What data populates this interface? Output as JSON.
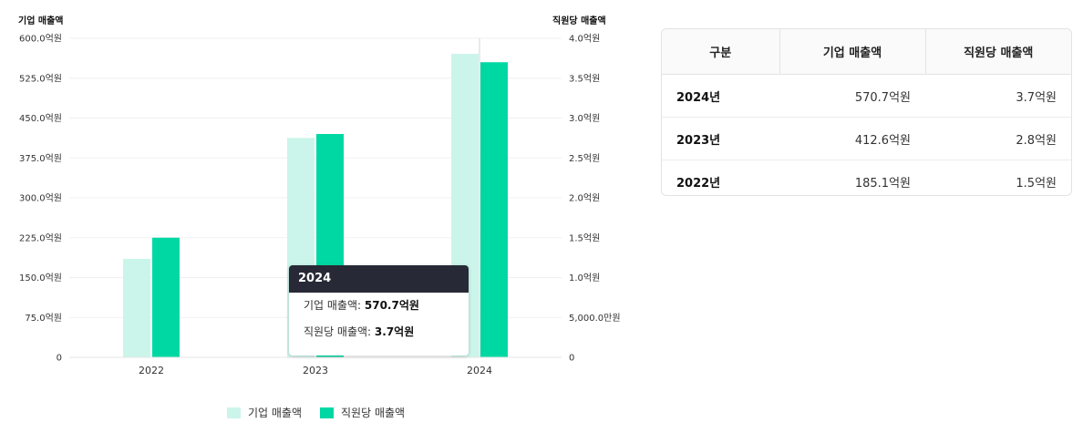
{
  "chart_data": {
    "type": "bar",
    "categories": [
      "2022",
      "2023",
      "2024"
    ],
    "left_axis": {
      "title": "기업 매출액",
      "ticks": [
        "0",
        "75.0억원",
        "150.0억원",
        "225.0억원",
        "300.0억원",
        "375.0억원",
        "450.0억원",
        "525.0억원",
        "600.0억원"
      ],
      "ylim": [
        0,
        600
      ]
    },
    "right_axis": {
      "title": "직원당 매출액",
      "ticks": [
        "0",
        "5,000.0만원",
        "1.0억원",
        "1.5억원",
        "2.0억원",
        "2.5억원",
        "3.0억원",
        "3.5억원",
        "4.0억원"
      ],
      "ylim": [
        0,
        4.0
      ]
    },
    "series": [
      {
        "name": "기업 매출액",
        "axis": "left",
        "unit": "억원",
        "values": [
          185.1,
          412.6,
          570.7
        ],
        "color": "#cbf5ea"
      },
      {
        "name": "직원당 매출액",
        "axis": "right",
        "unit": "억원",
        "values": [
          1.5,
          2.8,
          3.7
        ],
        "color": "#00d8a4"
      }
    ],
    "legend": "bottom-center",
    "grid": true
  },
  "tooltip": {
    "title": "2024",
    "row1_label": "기업 매출액: ",
    "row1_value": "570.7억원",
    "row2_label": "직원당 매출액: ",
    "row2_value": "3.7억원"
  },
  "table": {
    "headers": [
      "구분",
      "기업 매출액",
      "직원당 매출액"
    ],
    "rows": [
      [
        "2024년",
        "570.7억원",
        "3.7억원"
      ],
      [
        "2023년",
        "412.6억원",
        "2.8억원"
      ],
      [
        "2022년",
        "185.1억원",
        "1.5억원"
      ]
    ]
  }
}
